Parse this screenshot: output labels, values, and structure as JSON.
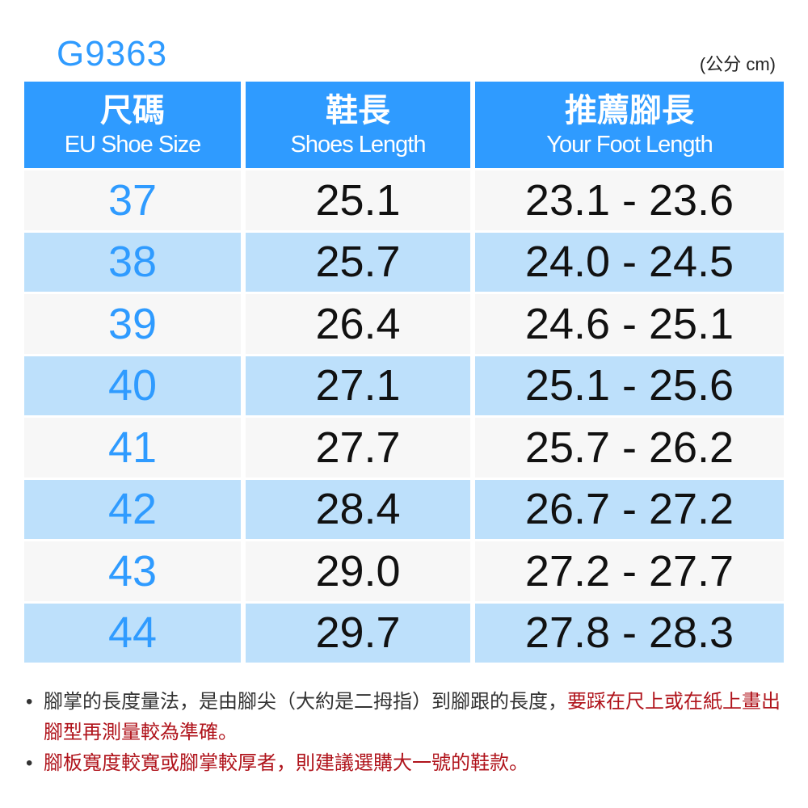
{
  "model": "G9363",
  "unit": "(公分 cm)",
  "headers": [
    {
      "zh": "尺碼",
      "en": "EU Shoe Size"
    },
    {
      "zh": "鞋長",
      "en": "Shoes Length"
    },
    {
      "zh": "推薦腳長",
      "en": "Your Foot Length"
    }
  ],
  "rows": [
    [
      "37",
      "25.1",
      "23.1 - 23.6"
    ],
    [
      "38",
      "25.7",
      "24.0 - 24.5"
    ],
    [
      "39",
      "26.4",
      "24.6 - 25.1"
    ],
    [
      "40",
      "27.1",
      "25.1 - 25.6"
    ],
    [
      "41",
      "27.7",
      "25.7 - 26.2"
    ],
    [
      "42",
      "28.4",
      "26.7 - 27.2"
    ],
    [
      "43",
      "29.0",
      "27.2 - 27.7"
    ],
    [
      "44",
      "29.7",
      "27.8 - 28.3"
    ]
  ],
  "notes": {
    "bullet": "•",
    "note1_black": "腳掌的長度量法，是由腳尖（大約是二拇指）到腳跟的長度，",
    "note1_red": "要踩在尺上或在紙上畫出腳型再測量較為準確。",
    "note2_red": "腳板寬度較寬或腳掌較厚者，則建議選購大一號的鞋款。"
  },
  "colors": {
    "header": "#2f9bff",
    "row_light": "#f7f7f7",
    "row_blue": "#bde0fb",
    "note_red": "#b0141c"
  }
}
